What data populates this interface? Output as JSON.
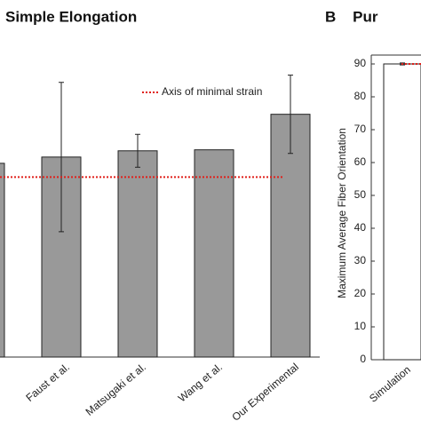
{
  "chart_data": [
    {
      "type": "bar",
      "title": "Simple Elongation",
      "categories": [
        null,
        "Faust et al.",
        "Matsugaki et al.",
        "Wang et al.",
        "Our Experimental"
      ],
      "values": [
        58.9,
        60.8,
        62.7,
        63,
        73.8
      ],
      "errors": [
        null,
        22.7,
        5,
        null,
        11.9
      ],
      "color": "#999999",
      "ylim": [
        0,
        108
      ],
      "reference_line": {
        "value": 54.7,
        "label": "Axis of minimal strain",
        "color": "#e0201b"
      }
    },
    {
      "type": "bar",
      "title": "B    Pur",
      "y_label": "Maximum Average Fiber Orientation",
      "categories": [
        "Simulation"
      ],
      "values": [
        90
      ],
      "errors": [
        0.3
      ],
      "color": "#ffffff",
      "ylim": [
        0,
        92.7
      ],
      "yticks": [
        0,
        10,
        20,
        30,
        40,
        50,
        60,
        70,
        80,
        90
      ],
      "reference_line": {
        "value": 90,
        "color": "#e0201b"
      }
    }
  ]
}
